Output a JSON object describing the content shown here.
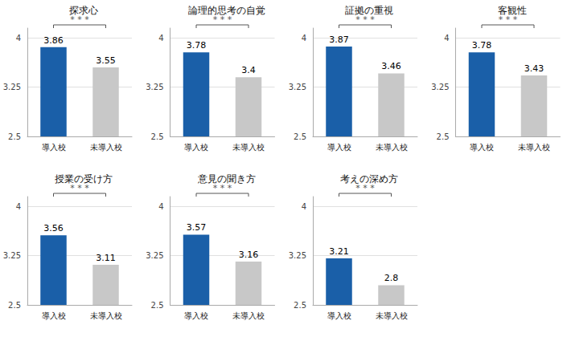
{
  "chart_data": [
    {
      "type": "bar",
      "title": "探求心",
      "categories": [
        "導入校",
        "未導入校"
      ],
      "values": [
        3.86,
        3.55
      ],
      "colors": [
        "#1a5fa8",
        "#c8c8c8"
      ],
      "ylim": [
        2.5,
        4.15
      ],
      "yticks": [
        2.5,
        3.25,
        4
      ],
      "grid": true,
      "data_labels": true,
      "annotations": [
        "* * *"
      ]
    },
    {
      "type": "bar",
      "title": "論理的思考の自覚",
      "categories": [
        "導入校",
        "未導入校"
      ],
      "values": [
        3.78,
        3.4
      ],
      "colors": [
        "#1a5fa8",
        "#c8c8c8"
      ],
      "ylim": [
        2.5,
        4.15
      ],
      "yticks": [
        2.5,
        3.25,
        4
      ],
      "grid": true,
      "data_labels": true,
      "annotations": [
        "* * *"
      ]
    },
    {
      "type": "bar",
      "title": "証拠の重視",
      "categories": [
        "導入校",
        "未導入校"
      ],
      "values": [
        3.87,
        3.46
      ],
      "colors": [
        "#1a5fa8",
        "#c8c8c8"
      ],
      "ylim": [
        2.5,
        4.15
      ],
      "yticks": [
        2.5,
        3.25,
        4
      ],
      "grid": true,
      "data_labels": true,
      "annotations": [
        "* * *"
      ]
    },
    {
      "type": "bar",
      "title": "客観性",
      "categories": [
        "導入校",
        "未導入校"
      ],
      "values": [
        3.78,
        3.43
      ],
      "colors": [
        "#1a5fa8",
        "#c8c8c8"
      ],
      "ylim": [
        2.5,
        4.15
      ],
      "yticks": [
        2.5,
        3.25,
        4
      ],
      "grid": true,
      "data_labels": true,
      "annotations": [
        "* * *"
      ]
    },
    {
      "type": "bar",
      "title": "授業の受け方",
      "categories": [
        "導入校",
        "未導入校"
      ],
      "values": [
        3.56,
        3.11
      ],
      "colors": [
        "#1a5fa8",
        "#c8c8c8"
      ],
      "ylim": [
        2.5,
        4.15
      ],
      "yticks": [
        2.5,
        3.25,
        4
      ],
      "grid": true,
      "data_labels": true,
      "annotations": [
        "* * *"
      ]
    },
    {
      "type": "bar",
      "title": "意見の聞き方",
      "categories": [
        "導入校",
        "未導入校"
      ],
      "values": [
        3.57,
        3.16
      ],
      "colors": [
        "#1a5fa8",
        "#c8c8c8"
      ],
      "ylim": [
        2.5,
        4.15
      ],
      "yticks": [
        2.5,
        3.25,
        4
      ],
      "grid": true,
      "data_labels": true,
      "annotations": [
        "* * *"
      ]
    },
    {
      "type": "bar",
      "title": "考えの深め方",
      "categories": [
        "導入校",
        "未導入校"
      ],
      "values": [
        3.21,
        2.8
      ],
      "colors": [
        "#1a5fa8",
        "#c8c8c8"
      ],
      "ylim": [
        2.5,
        4.15
      ],
      "yticks": [
        2.5,
        3.25,
        4
      ],
      "grid": true,
      "data_labels": true,
      "annotations": [
        "* * *"
      ]
    }
  ]
}
